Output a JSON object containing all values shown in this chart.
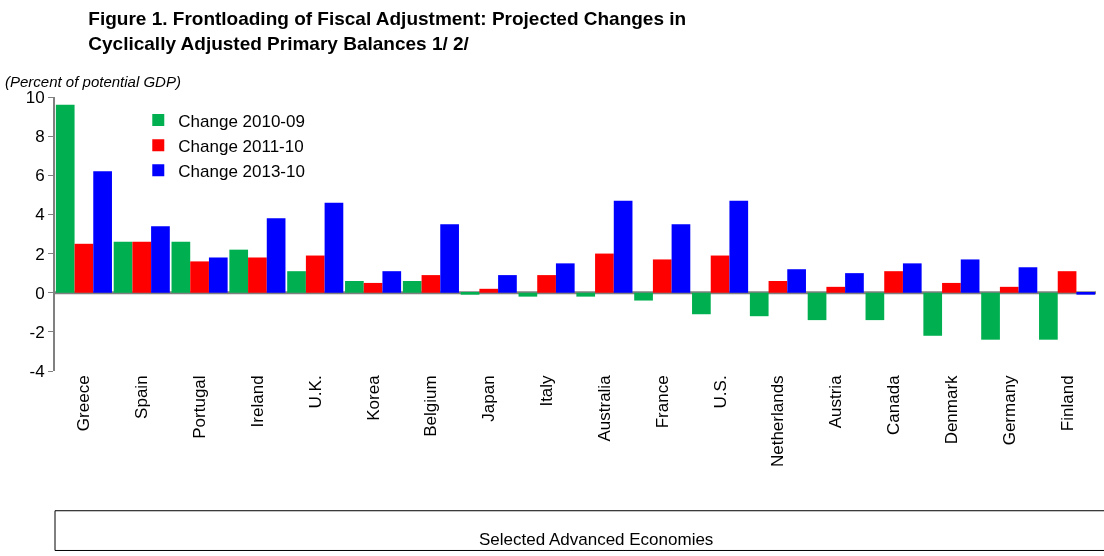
{
  "chart_data": {
    "type": "bar",
    "title": "Figure 1. Frontloading of Fiscal Adjustment: Projected Changes in Cyclically Adjusted Primary Balances 1/ 2/",
    "subtitle": "(Percent of potential GDP)",
    "categories": [
      "Greece",
      "Spain",
      "Portugal",
      "Ireland",
      "U.K.",
      "Korea",
      "Belgium",
      "Japan",
      "Italy",
      "Australia",
      "France",
      "U.S.",
      "Netherlands",
      "Austria",
      "Canada",
      "Denmark",
      "Germany",
      "Finland"
    ],
    "series": [
      {
        "name": "Change 2010-09",
        "color": "#00b050",
        "values": [
          9.6,
          2.6,
          2.6,
          2.2,
          1.1,
          0.6,
          0.6,
          -0.1,
          -0.2,
          -0.2,
          -0.4,
          -1.1,
          -1.2,
          -1.4,
          -1.4,
          -2.2,
          -2.4,
          -2.4
        ]
      },
      {
        "name": "Change 2011-10",
        "color": "#ff0000",
        "values": [
          2.5,
          2.6,
          1.6,
          1.8,
          1.9,
          0.5,
          0.9,
          0.2,
          0.9,
          2.0,
          1.7,
          1.9,
          0.6,
          0.3,
          1.1,
          0.5,
          0.3,
          1.1
        ]
      },
      {
        "name": "Change 2013-10",
        "color": "#0000ff",
        "values": [
          6.2,
          3.4,
          1.8,
          3.8,
          4.6,
          1.1,
          3.5,
          0.9,
          1.5,
          4.7,
          3.5,
          4.7,
          1.2,
          1.0,
          1.5,
          1.7,
          1.3,
          -0.1
        ]
      }
    ],
    "ylim": [
      -4,
      10
    ],
    "yticks": [
      -4,
      -2,
      0,
      2,
      4,
      6,
      8,
      10
    ],
    "annotations": [
      "Selected Advanced Economies"
    ],
    "ref_lines": [
      {
        "axis": "y",
        "value": 0,
        "color": "#808080"
      }
    ],
    "grid": false,
    "legend": "top left"
  }
}
